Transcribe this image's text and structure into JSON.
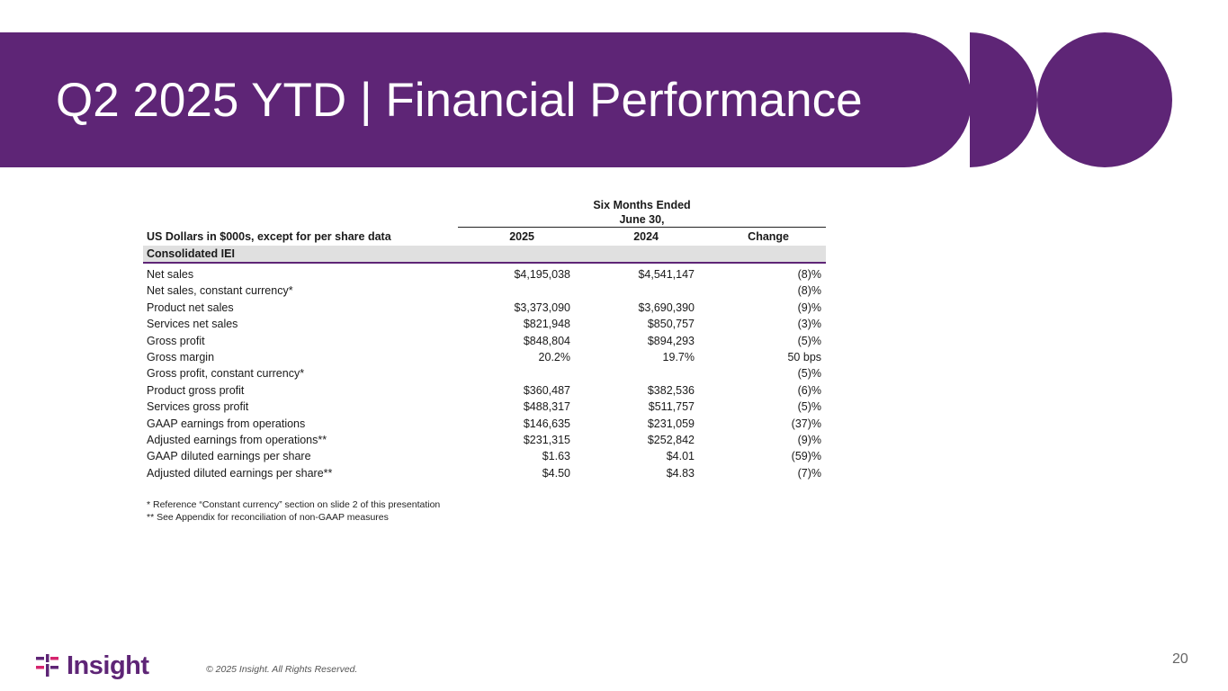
{
  "slide": {
    "title": "Q2 2025 YTD | Financial Performance",
    "accent_color": "#5e2576",
    "page_number": "20",
    "copyright": "© 2025 Insight. All Rights Reserved.",
    "logo_text": "Insight",
    "logo_mark_colors": [
      "#5e2576",
      "#d6246e"
    ]
  },
  "table": {
    "group_header_line1": "Six Months Ended",
    "group_header_line2": "June 30,",
    "row_header_label": "US Dollars in $000s, except for per share data",
    "col_2025": "2025",
    "col_2024": "2024",
    "col_change": "Change",
    "section_label": "Consolidated IEI",
    "rows": [
      {
        "label": "Net sales",
        "v2025": "$4,195,038",
        "v2024": "$4,541,147",
        "change": "(8)%"
      },
      {
        "label": "Net sales, constant currency*",
        "v2025": "",
        "v2024": "",
        "change": "(8)%"
      },
      {
        "label": "Product net sales",
        "v2025": "$3,373,090",
        "v2024": "$3,690,390",
        "change": "(9)%"
      },
      {
        "label": "Services net sales",
        "v2025": "$821,948",
        "v2024": "$850,757",
        "change": "(3)%"
      },
      {
        "label": "Gross profit",
        "v2025": "$848,804",
        "v2024": "$894,293",
        "change": "(5)%"
      },
      {
        "label": "Gross margin",
        "v2025": "20.2%",
        "v2024": "19.7%",
        "change": "50 bps"
      },
      {
        "label": "Gross profit, constant currency*",
        "v2025": "",
        "v2024": "",
        "change": "(5)%"
      },
      {
        "label": "Product gross profit",
        "v2025": "$360,487",
        "v2024": "$382,536",
        "change": "(6)%"
      },
      {
        "label": "Services gross profit",
        "v2025": "$488,317",
        "v2024": "$511,757",
        "change": "(5)%"
      },
      {
        "label": "GAAP earnings from operations",
        "v2025": "$146,635",
        "v2024": "$231,059",
        "change": "(37)%"
      },
      {
        "label": "Adjusted earnings from operations**",
        "v2025": "$231,315",
        "v2024": "$252,842",
        "change": "(9)%"
      },
      {
        "label": "GAAP diluted earnings per share",
        "v2025": "$1.63",
        "v2024": "$4.01",
        "change": "(59)%"
      },
      {
        "label": "Adjusted diluted earnings per share**",
        "v2025": "$4.50",
        "v2024": "$4.83",
        "change": "(7)%"
      }
    ]
  },
  "footnotes": {
    "note1": "* Reference “Constant currency” section on slide 2 of this presentation",
    "note2": "** See Appendix for reconciliation of non-GAAP measures"
  }
}
